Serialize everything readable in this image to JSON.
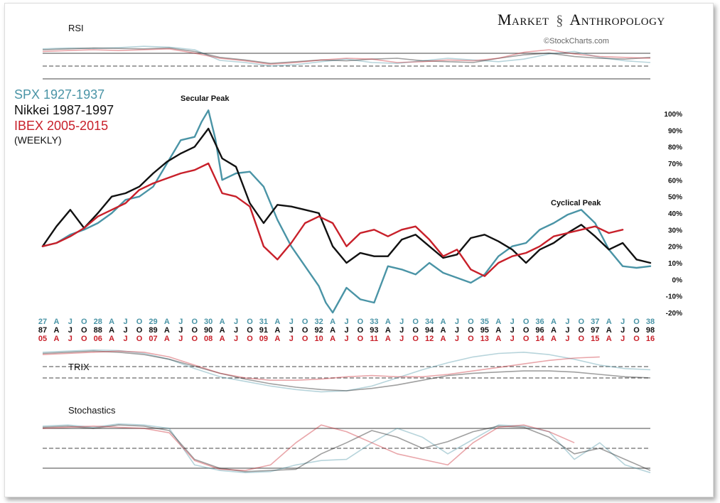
{
  "brand": {
    "left": "Market",
    "right": "Anthropology",
    "credit": "©StockCharts.com"
  },
  "colors": {
    "spx": "#4a94a6",
    "nikkei": "#111111",
    "ibex": "#c8202a"
  },
  "legend": [
    {
      "text": "SPX 1927-1937",
      "color": "#4a94a6"
    },
    {
      "text": "Nikkei 1987-1997",
      "color": "#111111"
    },
    {
      "text": "IBEX 2005-2015",
      "color": "#c8202a"
    },
    {
      "text": "(WEEKLY)",
      "color": "#111111"
    }
  ],
  "chart_data": [
    {
      "type": "line",
      "title": "",
      "ylim": [
        -20,
        100
      ],
      "yticks": [
        "100%",
        "90%",
        "80%",
        "70%",
        "60%",
        "50%",
        "40%",
        "30%",
        "20%",
        "10%",
        "0%",
        "-10%",
        "-20%"
      ],
      "annotations": [
        "Secular Peak",
        "Cyclical Peak"
      ],
      "x_axis_rows": [
        {
          "color": "#4a94a6",
          "labels": [
            "27",
            "A",
            "J",
            "O",
            "28",
            "A",
            "J",
            "O",
            "29",
            "A",
            "J",
            "O",
            "30",
            "A",
            "J",
            "O",
            "31",
            "A",
            "J",
            "O",
            "32",
            "A",
            "J",
            "O",
            "33",
            "A",
            "J",
            "O",
            "34",
            "A",
            "J",
            "O",
            "35",
            "A",
            "J",
            "O",
            "36",
            "A",
            "J",
            "O",
            "37",
            "A",
            "J",
            "O",
            "38"
          ]
        },
        {
          "color": "#111111",
          "labels": [
            "87",
            "A",
            "J",
            "O",
            "88",
            "A",
            "J",
            "O",
            "89",
            "A",
            "J",
            "O",
            "90",
            "A",
            "J",
            "O",
            "91",
            "A",
            "J",
            "O",
            "92",
            "A",
            "J",
            "O",
            "93",
            "A",
            "J",
            "O",
            "94",
            "A",
            "J",
            "O",
            "95",
            "A",
            "J",
            "O",
            "96",
            "A",
            "J",
            "O",
            "97",
            "A",
            "J",
            "O",
            "98"
          ]
        },
        {
          "color": "#c8202a",
          "labels": [
            "05",
            "A",
            "J",
            "O",
            "06",
            "A",
            "J",
            "O",
            "07",
            "A",
            "J",
            "O",
            "08",
            "A",
            "J",
            "O",
            "09",
            "A",
            "J",
            "O",
            "10",
            "A",
            "J",
            "O",
            "11",
            "A",
            "J",
            "O",
            "12",
            "A",
            "J",
            "O",
            "13",
            "A",
            "J",
            "O",
            "14",
            "A",
            "J",
            "O",
            "15",
            "A",
            "J",
            "O",
            "16"
          ]
        }
      ],
      "x_domain": [
        0,
        44
      ],
      "series": [
        {
          "name": "SPX 1927-1937",
          "color": "#4a94a6",
          "x": [
            0,
            1,
            2,
            3,
            4,
            5,
            6,
            7,
            8,
            9,
            10,
            11,
            11.5,
            12,
            12.5,
            13,
            14,
            15,
            16,
            17,
            18,
            19,
            20,
            20.5,
            21,
            22,
            23,
            24,
            25,
            26,
            27,
            28,
            29,
            30,
            31,
            32,
            33,
            34,
            35,
            36,
            37,
            38,
            39,
            40,
            41,
            42,
            43,
            44
          ],
          "y": [
            20,
            22,
            27,
            30,
            34,
            40,
            48,
            50,
            56,
            70,
            84,
            86,
            95,
            102,
            85,
            60,
            64,
            65,
            56,
            36,
            20,
            8,
            -4,
            -14,
            -20,
            -5,
            -12,
            -14,
            8,
            6,
            3,
            10,
            4,
            1,
            -2,
            3,
            14,
            20,
            22,
            30,
            34,
            39,
            42,
            34,
            18,
            8,
            7,
            8
          ]
        },
        {
          "name": "Nikkei 1987-1997",
          "color": "#111111",
          "x": [
            0,
            1,
            2,
            3,
            4,
            5,
            6,
            7,
            8,
            9,
            10,
            11,
            12,
            13,
            14,
            15,
            16,
            17,
            18,
            19,
            20,
            21,
            22,
            23,
            24,
            25,
            26,
            27,
            28,
            29,
            30,
            31,
            32,
            33,
            34,
            35,
            36,
            37,
            38,
            39,
            40,
            41,
            42,
            43,
            44
          ],
          "y": [
            20,
            32,
            42,
            31,
            40,
            50,
            52,
            56,
            64,
            71,
            76,
            80,
            91,
            73,
            68,
            46,
            34,
            45,
            44,
            42,
            40,
            20,
            10,
            16,
            14,
            14,
            24,
            27,
            20,
            13,
            15,
            25,
            27,
            23,
            18,
            10,
            18,
            22,
            28,
            33,
            26,
            18,
            22,
            12,
            10
          ]
        },
        {
          "name": "IBEX 2005-2015",
          "color": "#c8202a",
          "x": [
            0,
            1,
            2,
            3,
            4,
            5,
            6,
            7,
            8,
            9,
            10,
            11,
            12,
            13,
            14,
            15,
            16,
            17,
            18,
            19,
            20,
            21,
            22,
            23,
            24,
            25,
            26,
            27,
            28,
            29,
            30,
            31,
            32,
            33,
            34,
            35,
            36,
            37,
            38,
            39,
            40,
            41,
            42,
            43,
            44
          ],
          "y": [
            20,
            22,
            26,
            31,
            38,
            42,
            46,
            54,
            58,
            61,
            64,
            66,
            70,
            52,
            50,
            44,
            20,
            12,
            22,
            34,
            38,
            34,
            20,
            28,
            30,
            26,
            30,
            32,
            24,
            14,
            18,
            6,
            2,
            10,
            14,
            16,
            20,
            26,
            28,
            30,
            32,
            28,
            30,
            null,
            null
          ]
        }
      ]
    },
    {
      "type": "line",
      "title": "RSI",
      "series": [
        {
          "name": "",
          "color": "#4a94a6",
          "values": [
            72,
            74,
            73,
            75,
            78,
            76,
            70,
            45,
            40,
            32,
            35,
            42,
            48,
            40,
            38,
            44,
            50,
            46,
            42,
            48,
            60,
            66,
            52,
            44,
            40
          ]
        },
        {
          "name": "",
          "color": "#111111",
          "values": [
            70,
            72,
            74,
            73,
            72,
            74,
            66,
            52,
            46,
            38,
            42,
            46,
            44,
            48,
            50,
            44,
            42,
            40,
            50,
            58,
            62,
            54,
            50,
            48,
            52
          ]
        },
        {
          "name": "",
          "color": "#c8202a",
          "values": [
            66,
            68,
            70,
            68,
            70,
            72,
            62,
            50,
            44,
            36,
            40,
            46,
            50,
            48,
            40,
            42,
            46,
            44,
            50,
            64,
            70,
            60,
            54,
            52,
            50
          ]
        }
      ]
    },
    {
      "type": "line",
      "title": "TRIX",
      "series": [
        {
          "name": "",
          "color": "#4a94a6",
          "values": [
            88,
            90,
            92,
            91,
            86,
            76,
            60,
            46,
            38,
            30,
            24,
            20,
            22,
            30,
            44,
            58,
            70,
            80,
            86,
            88,
            84,
            76,
            66,
            60,
            58
          ]
        },
        {
          "name": "",
          "color": "#111111",
          "values": [
            86,
            88,
            90,
            88,
            84,
            76,
            64,
            52,
            42,
            34,
            28,
            24,
            22,
            26,
            32,
            40,
            48,
            52,
            54,
            56,
            56,
            54,
            50,
            46,
            44
          ]
        },
        {
          "name": "",
          "color": "#c8202a",
          "values": [
            84,
            86,
            88,
            90,
            88,
            80,
            66,
            52,
            44,
            40,
            40,
            42,
            46,
            48,
            46,
            46,
            50,
            56,
            62,
            68,
            74,
            78,
            80,
            null,
            null
          ]
        }
      ]
    },
    {
      "type": "line",
      "title": "Stochastics",
      "series": [
        {
          "name": "",
          "color": "#4a94a6",
          "values": [
            90,
            92,
            88,
            94,
            92,
            86,
            20,
            10,
            6,
            8,
            20,
            28,
            30,
            60,
            86,
            70,
            40,
            66,
            92,
            90,
            80,
            30,
            60,
            20,
            6
          ]
        },
        {
          "name": "",
          "color": "#111111",
          "values": [
            88,
            90,
            86,
            92,
            90,
            82,
            30,
            14,
            8,
            10,
            12,
            40,
            60,
            82,
            70,
            50,
            62,
            80,
            90,
            88,
            70,
            40,
            50,
            30,
            10
          ]
        },
        {
          "name": "",
          "color": "#c8202a",
          "values": [
            86,
            88,
            90,
            88,
            86,
            78,
            28,
            12,
            10,
            20,
            60,
            92,
            80,
            60,
            40,
            30,
            20,
            60,
            88,
            92,
            80,
            60,
            null,
            null,
            null
          ]
        }
      ]
    }
  ]
}
